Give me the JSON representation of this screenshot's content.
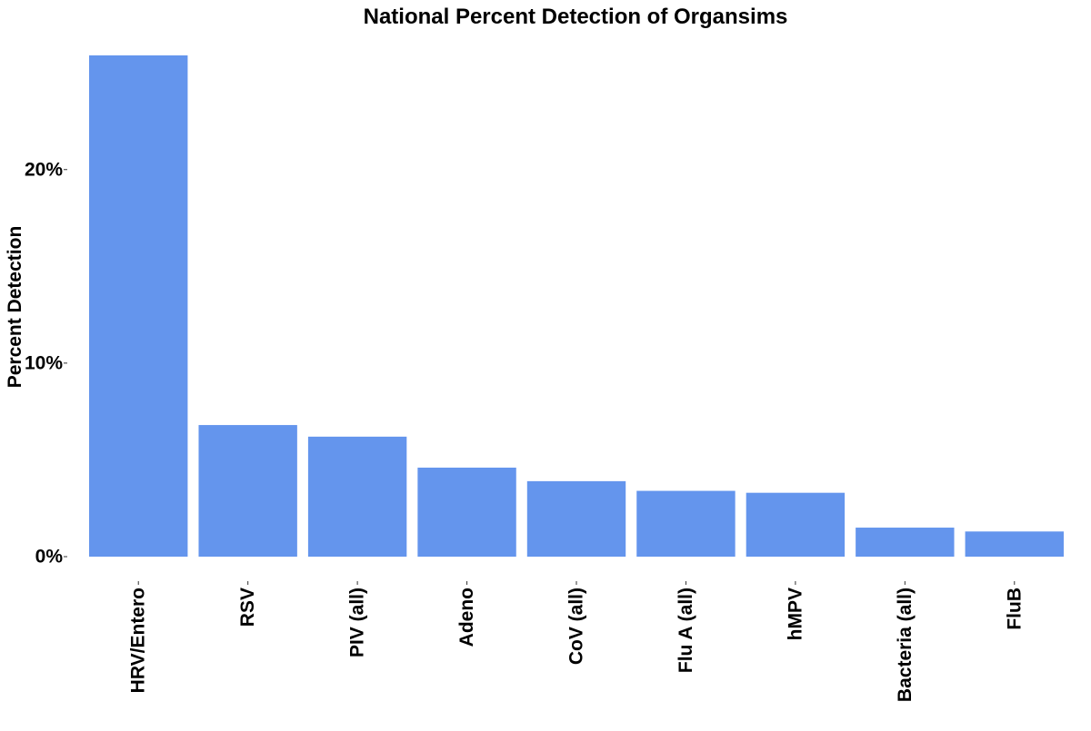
{
  "chart_data": {
    "type": "bar",
    "title": "National Percent Detection of Organsims",
    "xlabel": "",
    "ylabel": "Percent Detection",
    "categories": [
      "HRV/Entero",
      "RSV",
      "PIV (all)",
      "Adeno",
      "CoV (all)",
      "Flu A (all)",
      "hMPV",
      "Bacteria (all)",
      "FluB"
    ],
    "values": [
      25.9,
      6.8,
      6.2,
      4.6,
      3.9,
      3.4,
      3.3,
      1.5,
      1.3
    ],
    "unit": "%",
    "ylim": [
      0,
      25.9
    ],
    "yticks": [
      0,
      10,
      20
    ],
    "ytick_labels": [
      "0%",
      "10%",
      "20%"
    ],
    "grid": false,
    "legend": "none",
    "bar_color": "#6495ED"
  }
}
